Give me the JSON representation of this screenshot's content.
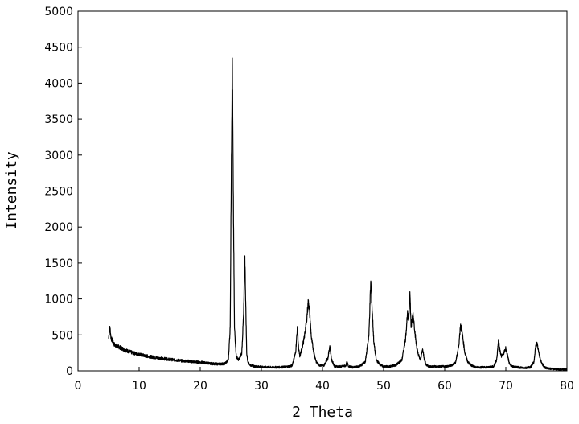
{
  "chart_data": {
    "type": "line",
    "title": "",
    "xlabel": "2 Theta",
    "ylabel": "Intensity",
    "xlim": [
      0,
      80
    ],
    "ylim": [
      0,
      5000
    ],
    "x_ticks": [
      0,
      10,
      20,
      30,
      40,
      50,
      60,
      70,
      80
    ],
    "y_ticks": [
      0,
      500,
      1000,
      1500,
      2000,
      2500,
      3000,
      3500,
      4000,
      4500,
      5000
    ],
    "grid": false,
    "legend": "none",
    "line_color": "#000000",
    "series": [
      {
        "x": [
          5.0,
          5.2,
          5.4,
          5.7,
          6,
          7,
          8,
          9,
          10,
          11,
          12,
          13,
          14,
          15,
          16,
          17,
          18,
          19,
          20,
          21,
          22,
          23,
          24,
          24.6,
          24.9,
          25.1,
          25.25,
          25.4,
          25.6,
          25.9,
          26.3,
          26.8,
          27.1,
          27.3,
          27.45,
          27.6,
          27.8,
          28.2,
          29,
          30,
          31,
          32,
          33,
          34,
          35,
          35.6,
          35.9,
          36.1,
          36.3,
          36.6,
          37.0,
          37.4,
          37.7,
          37.9,
          38.2,
          38.6,
          39.0,
          39.5,
          40.2,
          40.9,
          41.2,
          41.5,
          42,
          43,
          43.8,
          44,
          44.3,
          45,
          46,
          47,
          47.6,
          47.9,
          48.1,
          48.4,
          48.8,
          49.5,
          50,
          51,
          52,
          53,
          53.6,
          53.9,
          54.1,
          54.3,
          54.5,
          54.8,
          55.0,
          55.3,
          55.6,
          56,
          56.4,
          56.7,
          57.0,
          57.5,
          58,
          59,
          60,
          61,
          61.8,
          62.3,
          62.6,
          62.9,
          63.3,
          63.8,
          64.5,
          65,
          66,
          67,
          68,
          68.5,
          68.8,
          69.0,
          69.3,
          69.7,
          70.0,
          70.3,
          70.6,
          71,
          72,
          73,
          74,
          74.6,
          74.9,
          75.1,
          75.4,
          75.8,
          76.3,
          77,
          78,
          79,
          80
        ],
        "y": [
          450,
          620,
          460,
          400,
          360,
          320,
          280,
          250,
          230,
          210,
          195,
          180,
          170,
          160,
          150,
          140,
          135,
          125,
          120,
          110,
          100,
          95,
          100,
          150,
          600,
          3000,
          4350,
          2500,
          600,
          200,
          150,
          250,
          800,
          1600,
          900,
          250,
          120,
          80,
          60,
          55,
          50,
          50,
          50,
          55,
          70,
          250,
          600,
          300,
          200,
          300,
          450,
          700,
          980,
          800,
          450,
          250,
          120,
          80,
          70,
          180,
          350,
          150,
          60,
          60,
          70,
          120,
          60,
          50,
          60,
          120,
          500,
          1250,
          900,
          400,
          150,
          80,
          60,
          60,
          80,
          150,
          450,
          800,
          700,
          1100,
          600,
          800,
          650,
          400,
          250,
          150,
          300,
          150,
          80,
          60,
          60,
          60,
          60,
          70,
          120,
          350,
          650,
          500,
          250,
          120,
          70,
          50,
          50,
          50,
          60,
          150,
          420,
          300,
          200,
          250,
          320,
          200,
          100,
          60,
          50,
          40,
          50,
          120,
          350,
          380,
          250,
          120,
          50,
          30,
          25,
          20,
          20
        ]
      }
    ]
  }
}
